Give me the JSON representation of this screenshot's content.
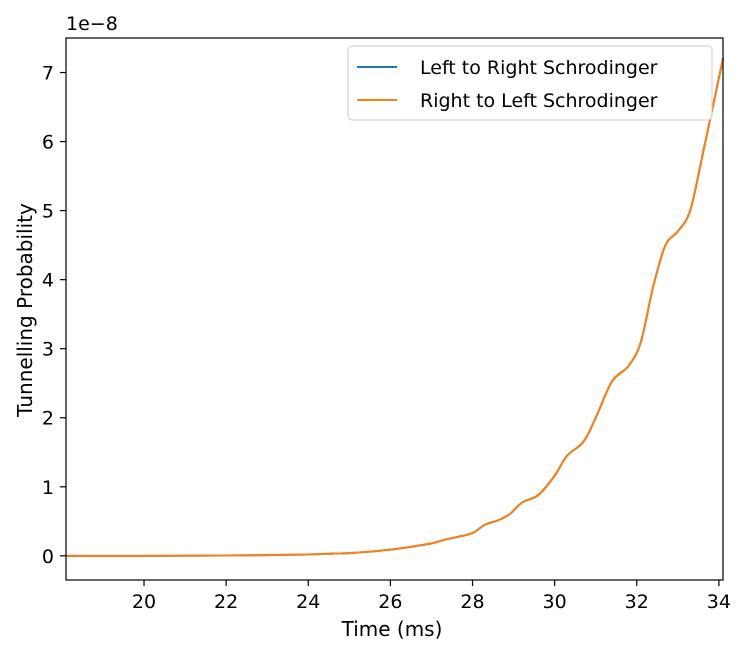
{
  "chart_data": {
    "type": "line",
    "title": "",
    "xlabel": "Time (ms)",
    "ylabel": "Tunnelling Probability",
    "scale_label": "1e−8",
    "xlim": [
      18.1,
      34.1
    ],
    "ylim": [
      -0.35,
      7.5
    ],
    "x_ticks": [
      20,
      22,
      24,
      26,
      28,
      30,
      32,
      34
    ],
    "y_ticks": [
      0,
      1,
      2,
      3,
      4,
      5,
      6,
      7
    ],
    "grid": false,
    "legend_position": "top-right",
    "series": [
      {
        "name": "Left to Right Schrodinger",
        "color": "#1f77b4",
        "x": [
          18.1,
          20,
          22,
          23,
          24,
          24.5,
          25,
          25.5,
          26,
          26.5,
          27,
          27.3,
          27.6,
          28,
          28.3,
          28.6,
          28.9,
          29.2,
          29.6,
          30,
          30.3,
          30.7,
          31,
          31.4,
          31.8,
          32.1,
          32.4,
          32.7,
          33,
          33.3,
          33.6,
          34.1
        ],
        "values": [
          0.0,
          0.0,
          0.005,
          0.01,
          0.02,
          0.03,
          0.04,
          0.06,
          0.09,
          0.13,
          0.18,
          0.23,
          0.27,
          0.33,
          0.45,
          0.51,
          0.6,
          0.77,
          0.88,
          1.16,
          1.45,
          1.65,
          2.0,
          2.53,
          2.75,
          3.1,
          3.9,
          4.5,
          4.7,
          5.0,
          5.8,
          7.2
        ]
      },
      {
        "name": "Right to Left Schrodinger",
        "color": "#ff7f0e",
        "x": [
          18.1,
          20,
          22,
          23,
          24,
          24.5,
          25,
          25.5,
          26,
          26.5,
          27,
          27.3,
          27.6,
          28,
          28.3,
          28.6,
          28.9,
          29.2,
          29.6,
          30,
          30.3,
          30.7,
          31,
          31.4,
          31.8,
          32.1,
          32.4,
          32.7,
          33,
          33.3,
          33.6,
          34.1
        ],
        "values": [
          0.0,
          0.0,
          0.005,
          0.01,
          0.02,
          0.03,
          0.04,
          0.06,
          0.09,
          0.13,
          0.18,
          0.23,
          0.27,
          0.33,
          0.45,
          0.51,
          0.6,
          0.77,
          0.88,
          1.16,
          1.45,
          1.65,
          2.0,
          2.53,
          2.75,
          3.1,
          3.9,
          4.5,
          4.7,
          5.0,
          5.8,
          7.2
        ]
      }
    ]
  }
}
